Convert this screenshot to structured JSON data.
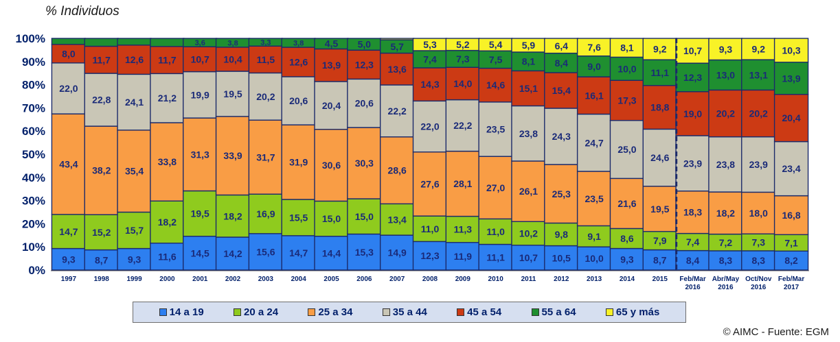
{
  "title": "% Individuos",
  "copyright": "© AIMC - Fuente: EGM",
  "chart_data": {
    "type": "bar",
    "stacked": true,
    "ylim": [
      0,
      100
    ],
    "y_ticks": [
      "0%",
      "10%",
      "20%",
      "30%",
      "40%",
      "50%",
      "60%",
      "70%",
      "80%",
      "90%",
      "100%"
    ],
    "categories": [
      "1997",
      "1998",
      "1999",
      "2000",
      "2001",
      "2002",
      "2003",
      "2004",
      "2005",
      "2006",
      "2007",
      "2008",
      "2009",
      "2010",
      "2011",
      "2012",
      "2013",
      "2014",
      "2015",
      "Feb/Mar 2016",
      "Abr/May 2016",
      "Oct/Nov 2016",
      "Feb/Mar 2017"
    ],
    "divider_after": "2015",
    "legend_position": "bottom",
    "series": [
      {
        "name": "14 a 19",
        "color": "#2d7ff0",
        "values": [
          9.3,
          8.7,
          9.3,
          11.6,
          14.5,
          14.2,
          15.6,
          14.7,
          14.4,
          15.3,
          14.9,
          12.3,
          11.9,
          11.1,
          10.7,
          10.5,
          10.0,
          9.3,
          8.7,
          8.4,
          8.3,
          8.3,
          8.2
        ]
      },
      {
        "name": "20 a 24",
        "color": "#8fcb1e",
        "values": [
          14.7,
          15.2,
          15.7,
          18.2,
          19.5,
          18.2,
          16.9,
          15.5,
          15.0,
          15.0,
          13.4,
          11.0,
          11.3,
          11.0,
          10.2,
          9.8,
          9.1,
          8.6,
          7.9,
          7.4,
          7.2,
          7.3,
          7.1
        ]
      },
      {
        "name": "25 a 34",
        "color": "#f99d45",
        "values": [
          43.4,
          38.2,
          35.4,
          33.8,
          31.3,
          33.9,
          31.7,
          31.9,
          30.6,
          30.3,
          28.6,
          27.6,
          28.1,
          27.0,
          26.1,
          25.3,
          23.5,
          21.6,
          19.5,
          18.3,
          18.2,
          18.0,
          16.8
        ]
      },
      {
        "name": "35 a 44",
        "color": "#c9c6b6",
        "values": [
          22.0,
          22.8,
          24.1,
          21.2,
          19.9,
          19.5,
          20.2,
          20.6,
          20.4,
          20.6,
          22.2,
          22.0,
          22.2,
          23.5,
          23.8,
          24.3,
          24.7,
          25.0,
          24.6,
          23.9,
          23.8,
          23.9,
          23.4
        ]
      },
      {
        "name": "45 a 54",
        "color": "#cc3a14",
        "values": [
          8.0,
          11.7,
          12.6,
          11.7,
          10.7,
          10.4,
          11.5,
          12.6,
          13.9,
          12.3,
          13.6,
          14.3,
          14.0,
          14.6,
          15.1,
          15.4,
          16.1,
          17.3,
          18.8,
          19.0,
          20.2,
          20.2,
          20.4
        ]
      },
      {
        "name": "55 a 64",
        "color": "#1f8f30",
        "values": [
          2.6,
          3.4,
          2.9,
          3.5,
          3.6,
          3.8,
          3.3,
          3.8,
          4.5,
          5.0,
          5.7,
          7.4,
          7.3,
          7.5,
          8.1,
          8.4,
          9.0,
          10.0,
          11.1,
          12.3,
          13.0,
          13.1,
          13.9
        ]
      },
      {
        "name": "65 y más",
        "color": "#f8f227",
        "values": [
          0,
          0,
          0,
          0,
          0,
          0,
          0,
          0,
          0,
          0,
          0.6,
          5.3,
          5.2,
          5.4,
          5.9,
          6.4,
          7.6,
          8.1,
          9.2,
          10.7,
          9.3,
          9.2,
          10.3
        ]
      }
    ],
    "labels": [
      [
        "9,3",
        "8,7",
        "9,3",
        "11,6",
        "14,5",
        "14,2",
        "15,6",
        "14,7",
        "14,4",
        "15,3",
        "14,9",
        "12,3",
        "11,9",
        "11,1",
        "10,7",
        "10,5",
        "10,0",
        "9,3",
        "8,7",
        "8,4",
        "8,3",
        "8,3",
        "8,2"
      ],
      [
        "14,7",
        "15,2",
        "15,7",
        "18,2",
        "19,5",
        "18,2",
        "16,9",
        "15,5",
        "15,0",
        "15,0",
        "13,4",
        "11,0",
        "11,3",
        "11,0",
        "10,2",
        "9,8",
        "9,1",
        "8,6",
        "7,9",
        "7,4",
        "7,2",
        "7,3",
        "7,1"
      ],
      [
        "43,4",
        "38,2",
        "35,4",
        "33,8",
        "31,3",
        "33,9",
        "31,7",
        "31,9",
        "30,6",
        "30,3",
        "28,6",
        "27,6",
        "28,1",
        "27,0",
        "26,1",
        "25,3",
        "23,5",
        "21,6",
        "19,5",
        "18,3",
        "18,2",
        "18,0",
        "16,8"
      ],
      [
        "22,0",
        "22,8",
        "24,1",
        "21,2",
        "19,9",
        "19,5",
        "20,2",
        "20,6",
        "20,4",
        "20,6",
        "22,2",
        "22,0",
        "22,2",
        "23,5",
        "23,8",
        "24,3",
        "24,7",
        "25,0",
        "24,6",
        "23,9",
        "23,8",
        "23,9",
        "23,4"
      ],
      [
        "8,0",
        "11,7",
        "12,6",
        "11,7",
        "10,7",
        "10,4",
        "11,5",
        "12,6",
        "13,9",
        "12,3",
        "13,6",
        "14,3",
        "14,0",
        "14,6",
        "15,1",
        "15,4",
        "16,1",
        "17,3",
        "18,8",
        "19,0",
        "20,2",
        "20,2",
        "20,4"
      ],
      [
        "",
        "",
        "",
        "",
        "3,6",
        "3,8",
        "3,3",
        "3,8",
        "4,5",
        "5,0",
        "5,7",
        "7,4",
        "7,3",
        "7,5",
        "8,1",
        "8,4",
        "9,0",
        "10,0",
        "11,1",
        "12,3",
        "13,0",
        "13,1",
        "13,9"
      ],
      [
        "",
        "",
        "",
        "",
        "",
        "",
        "",
        "",
        "",
        "",
        "",
        "5,3",
        "5,2",
        "5,4",
        "5,9",
        "6,4",
        "7,6",
        "8,1",
        "9,2",
        "10,7",
        "9,3",
        "9,2",
        "10,3"
      ]
    ]
  }
}
